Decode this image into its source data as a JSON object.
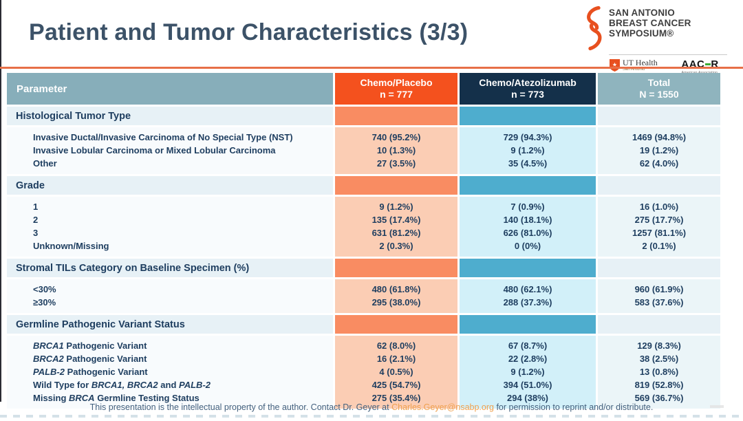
{
  "slide": {
    "title": "Patient and Tumor Characteristics (3/3)",
    "footer": {
      "text_before": "This presentation is the intellectual property of the author.  Contact Dr. Geyer at ",
      "email": "Charles.Geyer@nsabp.org",
      "text_after": " for permission to reprint and/or distribute."
    }
  },
  "logo": {
    "org_lines": [
      "SAN ANTONIO",
      "BREAST CANCER",
      "SYMPOSIUM®"
    ],
    "ut_health": {
      "name": "UT Health",
      "sub": "San Antonio",
      "center": "Mays Cancer Center"
    },
    "aacr": {
      "name_left": "AAC",
      "name_right": "R",
      "sub1": "American Association",
      "sub2": "for Cancer Research®"
    }
  },
  "colors": {
    "titleColor": "#3C5268",
    "ruleOrange": "#E76F47",
    "hdrGray": "#87AEBA",
    "hdrOrange": "#F4511E",
    "hdrNavy": "#14304A",
    "hdrTotal": "#8FB4BE",
    "secLight": "#E7F1F6",
    "secOrange": "#F98C62",
    "secBlue": "#4EADCE",
    "dataParam": "#F8FBFD",
    "dataPeach": "#FBCDB4",
    "dataCyan": "#D2F0F9",
    "dataTotal": "#EBF5F8",
    "navyText": "#1D3D5F",
    "footerText": "#44617E",
    "emailOrange": "#EFA14F",
    "logoOrange": "#E8501F",
    "aacrGreen": "#3BAA35",
    "dashColor": "#CCDCE4"
  },
  "table": {
    "header": {
      "parameter": "Parameter",
      "col1": {
        "line1": "Chemo/Placebo",
        "line2": "n = 777"
      },
      "col2": {
        "line1": "Chemo/Atezolizumab",
        "line2": "n = 773"
      },
      "col3": {
        "line1": "Total",
        "line2": "N = 1550"
      }
    },
    "sections": [
      {
        "title": "Histological Tumor Type",
        "rows": [
          {
            "label": "Invasive Ductal/Invasive Carcinoma of No Special Type (NST)",
            "placebo": "740 (95.2%)",
            "atezolizumab": "729 (94.3%)",
            "total": "1469 (94.8%)"
          },
          {
            "label": "Invasive Lobular Carcinoma or Mixed Lobular Carcinoma",
            "placebo": "10 (1.3%)",
            "atezolizumab": "9 (1.2%)",
            "total": "19 (1.2%)"
          },
          {
            "label": "Other",
            "placebo": "27 (3.5%)",
            "atezolizumab": "35 (4.5%)",
            "total": "62 (4.0%)"
          }
        ]
      },
      {
        "title": "Grade",
        "rows": [
          {
            "label": "1",
            "placebo": "9 (1.2%)",
            "atezolizumab": "7 (0.9%)",
            "total": "16 (1.0%)"
          },
          {
            "label": "2",
            "placebo": "135 (17.4%)",
            "atezolizumab": "140 (18.1%)",
            "total": "275 (17.7%)"
          },
          {
            "label": "3",
            "placebo": "631 (81.2%)",
            "atezolizumab": "626 (81.0%)",
            "total": "1257 (81.1%)"
          },
          {
            "label": "Unknown/Missing",
            "placebo": "2 (0.3%)",
            "atezolizumab": "0 (0%)",
            "total": "2 (0.1%)"
          }
        ]
      },
      {
        "title": "Stromal TILs Category on Baseline Specimen (%)",
        "rows": [
          {
            "label": "<30%",
            "placebo": "480 (61.8%)",
            "atezolizumab": "480 (62.1%)",
            "total": "960 (61.9%)"
          },
          {
            "label": "≥30%",
            "placebo": "295 (38.0%)",
            "atezolizumab": "288 (37.3%)",
            "total": "583 (37.6%)"
          }
        ]
      },
      {
        "title": "Germline Pathogenic Variant Status",
        "rows": [
          {
            "label": "*BRCA1* Pathogenic Variant",
            "placebo": "62 (8.0%)",
            "atezolizumab": "67 (8.7%)",
            "total": "129 (8.3%)"
          },
          {
            "label": "*BRCA2* Pathogenic Variant",
            "placebo": "16 (2.1%)",
            "atezolizumab": "22 (2.8%)",
            "total": "38 (2.5%)"
          },
          {
            "label": "*PALB-2* Pathogenic Variant",
            "placebo": "4 (0.5%)",
            "atezolizumab": "9 (1.2%)",
            "total": "13 (0.8%)"
          },
          {
            "label": "Wild Type for *BRCA1, BRCA2* and *PALB-2*",
            "placebo": "425 (54.7%)",
            "atezolizumab": "394 (51.0%)",
            "total": "819 (52.8%)"
          },
          {
            "label": "Missing *BRCA* Germline Testing Status",
            "placebo": "275 (35.4%)",
            "atezolizumab": "294 (38%)",
            "total": "569 (36.7%)"
          }
        ]
      }
    ]
  }
}
